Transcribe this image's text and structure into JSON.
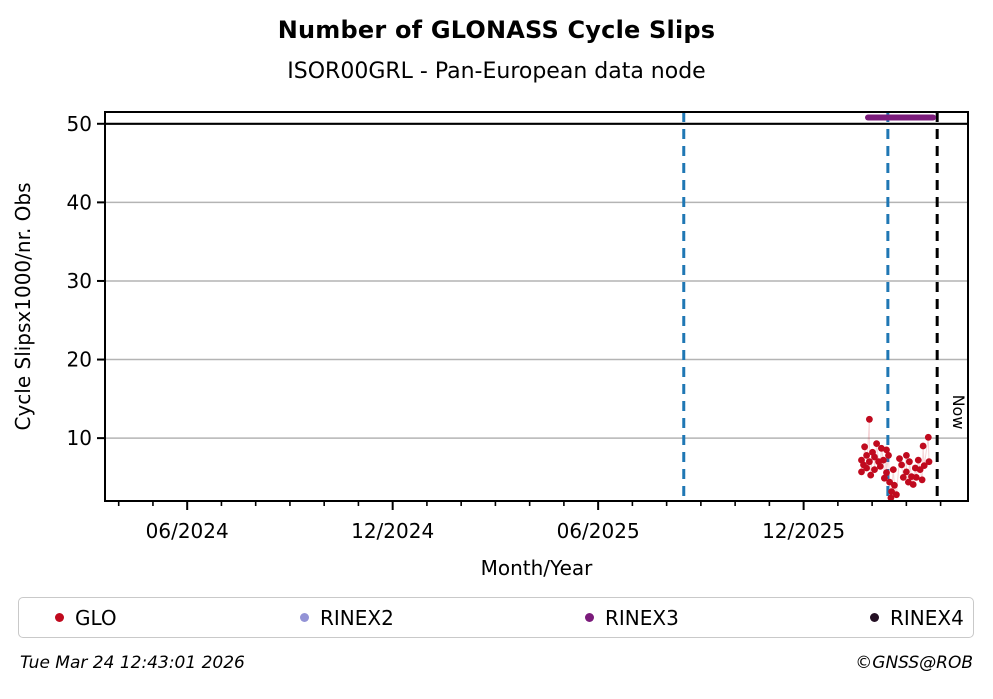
{
  "page": {
    "title": "Number of GLONASS Cycle Slips",
    "subtitle": "ISOR00GRL - Pan-European data node"
  },
  "chart_data": {
    "type": "scatter",
    "title": "Number of GLONASS Cycle Slips",
    "subtitle": "ISOR00GRL - Pan-European data node",
    "xlabel": "Month/Year",
    "ylabel": "Cycle Slipsx1000/nr. Obs",
    "x_unit": "months since 2024-01 (0 = Jan 2024)",
    "xlim": [
      2.6,
      27.8
    ],
    "ylim": [
      2,
      51.5
    ],
    "y_ticks": [
      10,
      20,
      30,
      40,
      50
    ],
    "x_major_ticks": [
      {
        "t": 5,
        "label": "06/2024"
      },
      {
        "t": 11,
        "label": "12/2024"
      },
      {
        "t": 17,
        "label": "06/2025"
      },
      {
        "t": 23,
        "label": "12/2025"
      }
    ],
    "x_minor_ticks": {
      "every_month": true,
      "from": 3,
      "to": 27
    },
    "grid": {
      "horizontal": true,
      "vertical": false,
      "color": "#b4b4b4"
    },
    "hlines": [
      {
        "name": "cap-line-50",
        "y": 50,
        "color": "#000000",
        "style": "solid",
        "width": 2.2
      }
    ],
    "vlines": [
      {
        "name": "event-line-1",
        "t": 19.5,
        "color": "#1f77b4",
        "style": "dashed",
        "label": ""
      },
      {
        "name": "event-line-2",
        "t": 25.46,
        "color": "#1f77b4",
        "style": "dashed",
        "label": ""
      },
      {
        "name": "now-line",
        "t": 26.9,
        "color": "#000000",
        "style": "dashed",
        "label": "Now"
      }
    ],
    "now_label": "Now",
    "series": [
      {
        "name": "GLO",
        "type": "scatter",
        "color": "#c00a1e",
        "marker_radius": 3.4,
        "connector_color": "rgba(200,20,40,0.18)",
        "points": [
          [
            24.69,
            7.2
          ],
          [
            24.69,
            5.7
          ],
          [
            24.75,
            6.6
          ],
          [
            24.78,
            8.9
          ],
          [
            24.84,
            7.8
          ],
          [
            24.84,
            6.2
          ],
          [
            24.92,
            12.4
          ],
          [
            24.92,
            7.0
          ],
          [
            24.96,
            5.3
          ],
          [
            25.01,
            8.2
          ],
          [
            25.07,
            7.6
          ],
          [
            25.07,
            6.0
          ],
          [
            25.13,
            9.3
          ],
          [
            25.19,
            7.0
          ],
          [
            25.24,
            6.4
          ],
          [
            25.27,
            8.7
          ],
          [
            25.33,
            7.2
          ],
          [
            25.36,
            4.9
          ],
          [
            25.42,
            8.5
          ],
          [
            25.42,
            5.6
          ],
          [
            25.48,
            7.8
          ],
          [
            25.51,
            4.4
          ],
          [
            25.55,
            2.4
          ],
          [
            25.57,
            3.2
          ],
          [
            25.62,
            6.0
          ],
          [
            25.65,
            4.0
          ],
          [
            25.71,
            2.8
          ],
          [
            25.8,
            7.4
          ],
          [
            25.86,
            6.6
          ],
          [
            25.91,
            5.0
          ],
          [
            26.0,
            7.8
          ],
          [
            26.0,
            5.7
          ],
          [
            26.06,
            4.4
          ],
          [
            26.09,
            7.0
          ],
          [
            26.15,
            5.1
          ],
          [
            26.2,
            4.1
          ],
          [
            26.26,
            6.2
          ],
          [
            26.29,
            5.0
          ],
          [
            26.35,
            7.2
          ],
          [
            26.4,
            6.0
          ],
          [
            26.46,
            4.7
          ],
          [
            26.49,
            9.0
          ],
          [
            26.52,
            6.5
          ],
          [
            26.64,
            10.1
          ],
          [
            26.66,
            7.0
          ]
        ]
      },
      {
        "name": "RINEX3",
        "type": "hline-segment",
        "color": "#7b1b7b",
        "y": 50.8,
        "t_start": 24.88,
        "t_end": 26.78,
        "width": 6
      }
    ]
  },
  "legend": {
    "items": [
      {
        "label": "GLO",
        "color": "#c00a1e"
      },
      {
        "label": "RINEX2",
        "color": "#9393d6"
      },
      {
        "label": "RINEX3",
        "color": "#7b1b7b"
      },
      {
        "label": "RINEX4",
        "color": "#241024"
      }
    ]
  },
  "footer": {
    "timestamp": "Tue Mar 24 12:43:01 2026",
    "credit": "©GNSS@ROB"
  }
}
